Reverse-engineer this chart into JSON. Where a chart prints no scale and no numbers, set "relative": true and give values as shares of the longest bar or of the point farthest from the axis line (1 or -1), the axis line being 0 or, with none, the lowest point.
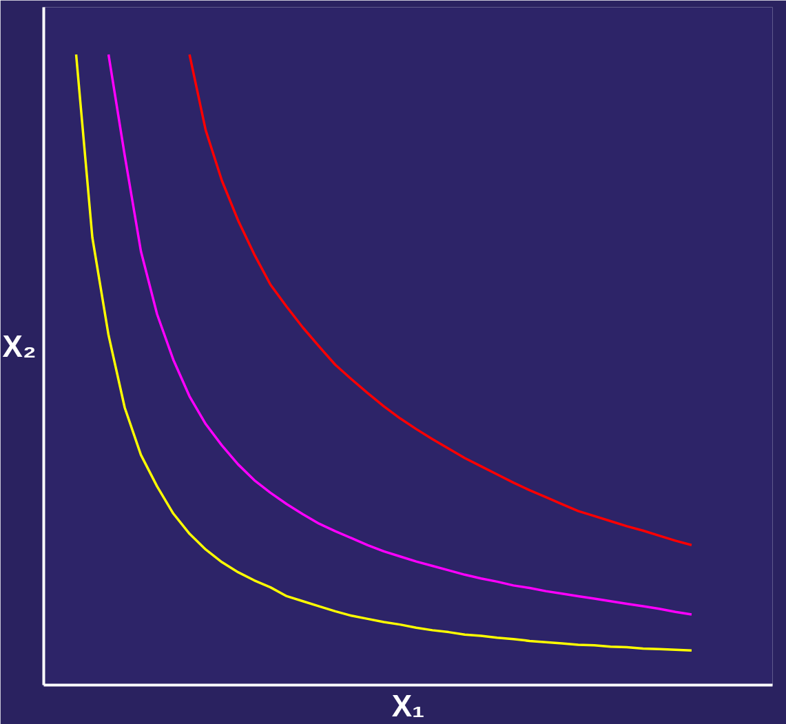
{
  "chart_data": {
    "type": "line",
    "relative": true,
    "xlabel": "X₁",
    "ylabel": "X₂",
    "categories": [
      null,
      null,
      null,
      null,
      null,
      null,
      null,
      null,
      null,
      null,
      null,
      null,
      null,
      null,
      null,
      null,
      null,
      null,
      null,
      null,
      null,
      null,
      null,
      null,
      null,
      null,
      null,
      null,
      null,
      null,
      null,
      null,
      null,
      null,
      null,
      null,
      null,
      null,
      null,
      null,
      null
    ],
    "series": [
      {
        "color": "#ffff00",
        "values": [
          null,
          null,
          1.0,
          0.71,
          0.555,
          0.44,
          0.365,
          0.315,
          0.272,
          0.24,
          0.215,
          0.195,
          0.179,
          0.166,
          0.155,
          0.141,
          0.133,
          0.125,
          0.117,
          0.11,
          0.105,
          0.1,
          0.096,
          0.091,
          0.087,
          0.084,
          0.08,
          0.078,
          0.075,
          0.073,
          0.07,
          0.068,
          0.066,
          0.064,
          0.063,
          0.061,
          0.06,
          0.058,
          0.057,
          0.056,
          0.055
        ]
      },
      {
        "color": "#ff00ff",
        "values": [
          null,
          null,
          null,
          null,
          1.0,
          0.84,
          0.688,
          0.588,
          0.516,
          0.458,
          0.414,
          0.38,
          0.35,
          0.325,
          0.305,
          0.287,
          0.271,
          0.256,
          0.244,
          0.233,
          0.222,
          0.212,
          0.204,
          0.196,
          0.189,
          0.182,
          0.175,
          0.169,
          0.164,
          0.158,
          0.154,
          0.149,
          0.145,
          0.141,
          0.137,
          0.133,
          0.129,
          0.125,
          0.121,
          0.116,
          0.112
        ]
      },
      {
        "color": "#ff0000",
        "values": [
          null,
          null,
          null,
          null,
          null,
          null,
          null,
          null,
          null,
          1.0,
          0.88,
          0.8,
          0.737,
          0.683,
          0.635,
          0.6,
          0.567,
          0.537,
          0.508,
          0.485,
          0.463,
          0.442,
          0.423,
          0.406,
          0.39,
          0.375,
          0.36,
          0.347,
          0.334,
          0.321,
          0.309,
          0.298,
          0.287,
          0.276,
          0.268,
          0.26,
          0.252,
          0.245,
          0.237,
          0.229,
          0.222
        ]
      }
    ]
  }
}
